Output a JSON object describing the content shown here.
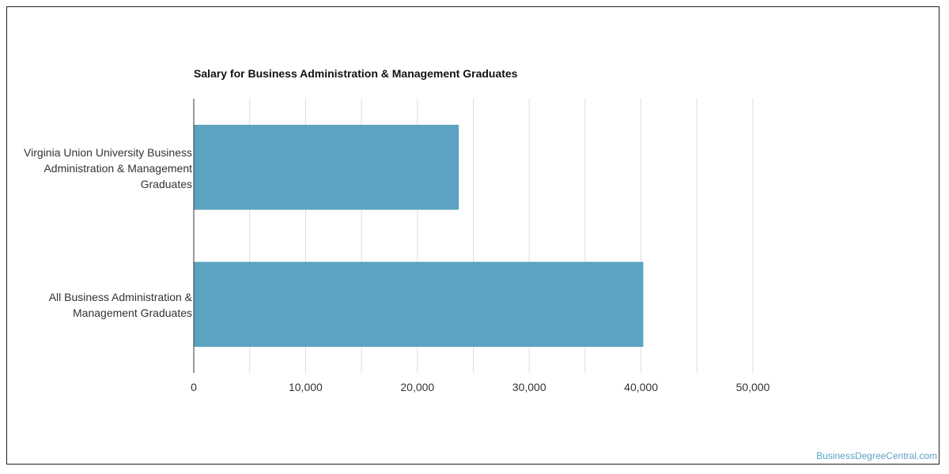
{
  "chart_data": {
    "type": "bar",
    "orientation": "horizontal",
    "title": "Salary for Business Administration & Management Graduates",
    "categories": [
      "Virginia Union University Business Administration & Management Graduates",
      "All Business Administration & Management Graduates"
    ],
    "values": [
      23700,
      40200
    ],
    "xlim": [
      0,
      50000
    ],
    "x_ticks": [
      0,
      10000,
      20000,
      30000,
      40000,
      50000
    ],
    "x_tick_labels": [
      "0",
      "10,000",
      "20,000",
      "30,000",
      "40,000",
      "50,000"
    ],
    "grid": true,
    "legend": "none",
    "bar_color": "#5ba3c0"
  },
  "watermark": "BusinessDegreeCentral.com"
}
